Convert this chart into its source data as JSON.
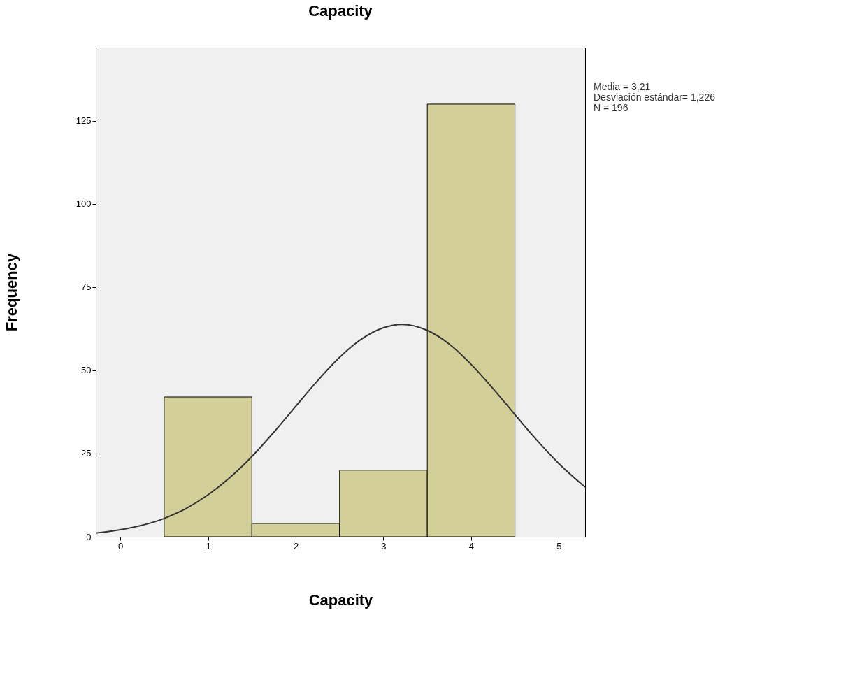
{
  "chart_data": {
    "type": "histogram",
    "title": "Capacity",
    "xlabel": "Capacity",
    "ylabel": "Frequency",
    "bins": [
      0.5,
      1.5,
      2.5,
      3.5,
      4.5
    ],
    "values": [
      42,
      4,
      20,
      130
    ],
    "color": "#d3cf98",
    "series": [
      {
        "type": "line",
        "color": "#333333",
        "x": [
          -0.28,
          0,
          0.5,
          0.75,
          1,
          1.25,
          1.5,
          1.75,
          2,
          2.25,
          2.5,
          2.75,
          3,
          3.21,
          3.5,
          3.75,
          4,
          4.25,
          4.5,
          4.75,
          5,
          5.3
        ],
        "values": [
          1.1,
          2.1,
          5.5,
          8.5,
          12.6,
          17.8,
          24.1,
          31.4,
          39.2,
          46.9,
          53.9,
          59.4,
          62.8,
          63.8,
          62.0,
          57.9,
          51.8,
          44.5,
          36.7,
          29.0,
          22.0,
          14.9
        ]
      }
    ],
    "xlim": [
      -0.28,
      5.3
    ],
    "ylim": [
      0,
      147
    ],
    "xticks": [
      0,
      1,
      2,
      3,
      4,
      5
    ],
    "yticks": [
      0,
      25,
      50,
      75,
      100,
      125
    ],
    "grid": false,
    "annotations": [
      "Media = 3,21",
      "Desviación estándar= 1,226",
      "N = 196"
    ]
  }
}
